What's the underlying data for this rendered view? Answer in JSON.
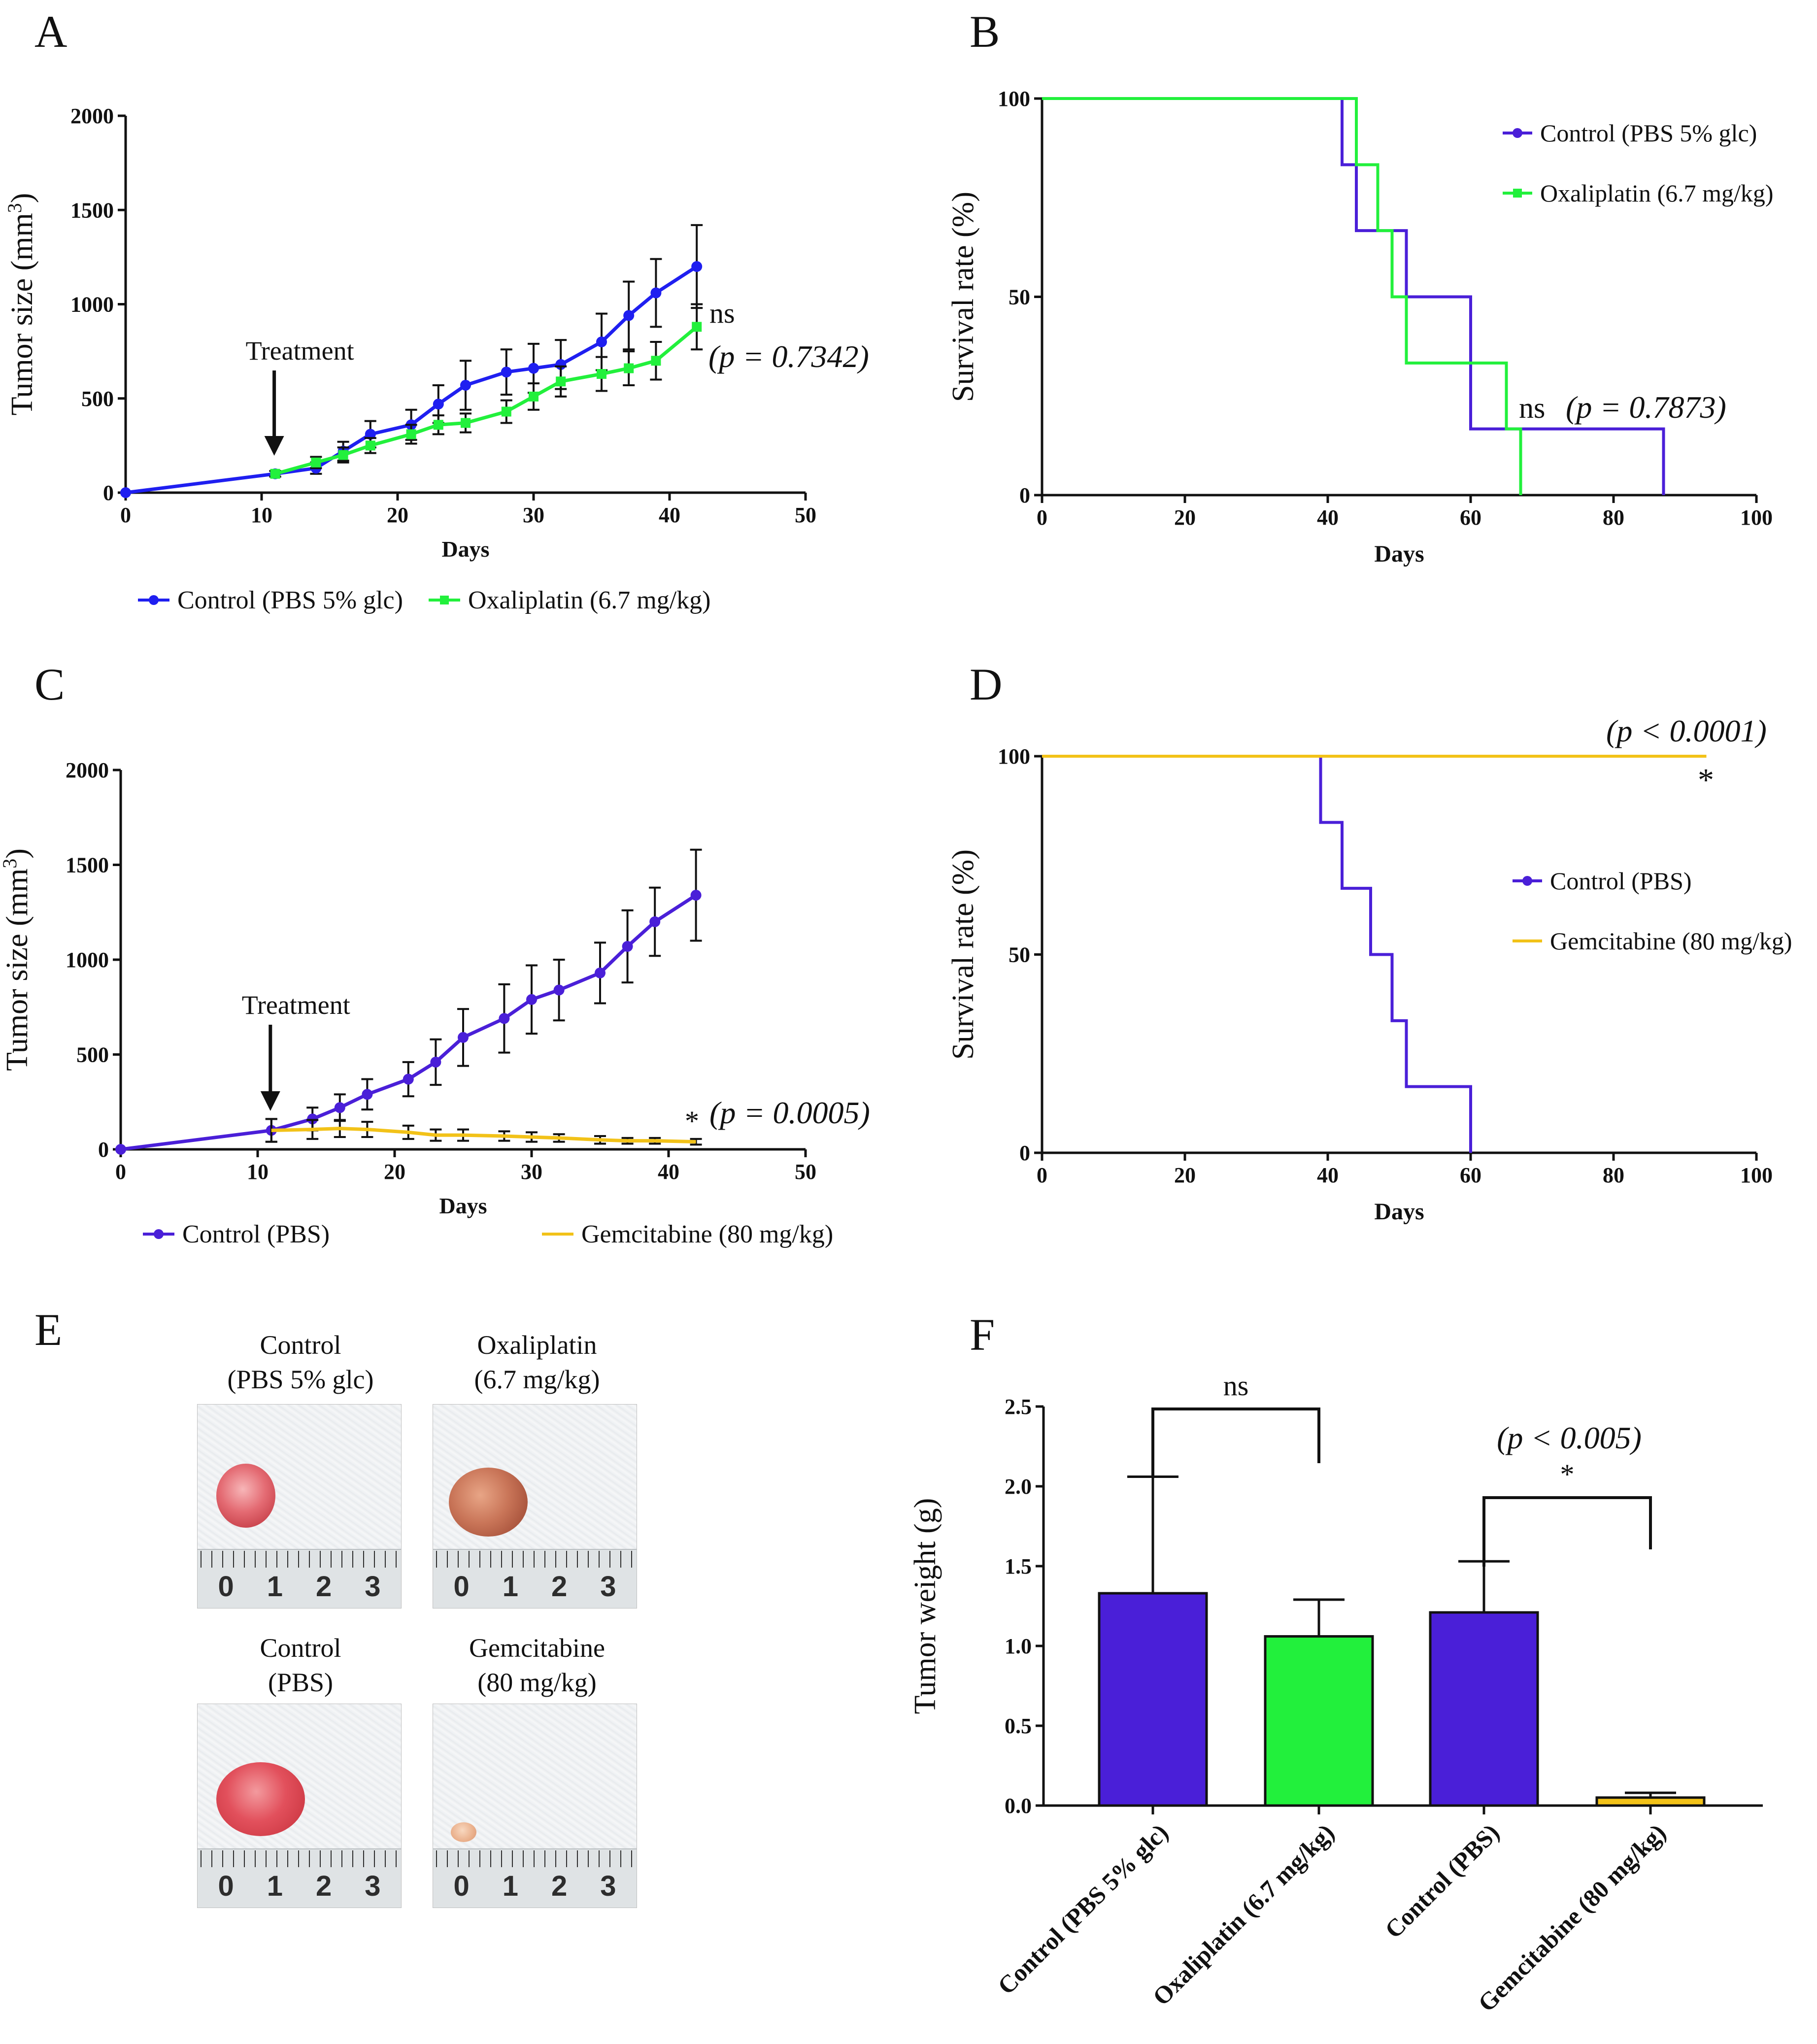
{
  "panel_letters": [
    "A",
    "B",
    "C",
    "D",
    "E",
    "F"
  ],
  "colors": {
    "control": "#1f1ff0",
    "control_b": "#4a1fd8",
    "oxaliplatin": "#22f03c",
    "gemcitabine": "#f2c218"
  },
  "chart_data": [
    {
      "panel": "A",
      "type": "line",
      "xlabel": "Days",
      "ylabel": "Tumor size (mm³)",
      "xlim": [
        0,
        50
      ],
      "ylim": [
        0,
        2000
      ],
      "xticks": [
        "0",
        "10",
        "20",
        "30",
        "40",
        "50"
      ],
      "yticks": [
        "0",
        "500",
        "1000",
        "1500",
        "2000"
      ],
      "annotation_arrow": "Treatment",
      "significance": "ns",
      "p_value": "(p = 0.7342)",
      "series": [
        {
          "name": "Control (PBS 5% glc)",
          "x": [
            0,
            11,
            14,
            16,
            18,
            21,
            23,
            25,
            28,
            30,
            32,
            35,
            37,
            39,
            42
          ],
          "y": [
            0,
            100,
            130,
            220,
            310,
            360,
            470,
            570,
            640,
            660,
            680,
            800,
            940,
            1060,
            1200
          ],
          "err": [
            0,
            15,
            30,
            50,
            70,
            80,
            100,
            130,
            120,
            130,
            130,
            150,
            180,
            180,
            220
          ]
        },
        {
          "name": "Oxaliplatin (6.7 mg/kg)",
          "x": [
            11,
            14,
            16,
            18,
            21,
            23,
            25,
            28,
            30,
            32,
            35,
            37,
            39,
            42
          ],
          "y": [
            100,
            160,
            200,
            250,
            310,
            360,
            370,
            430,
            510,
            590,
            630,
            660,
            700,
            880
          ],
          "err": [
            15,
            30,
            40,
            40,
            50,
            50,
            50,
            60,
            70,
            80,
            90,
            90,
            100,
            120
          ]
        }
      ]
    },
    {
      "panel": "B",
      "type": "line",
      "xlabel": "Days",
      "ylabel": "Survival rate (%)",
      "xlim": [
        0,
        100
      ],
      "ylim": [
        0,
        100
      ],
      "xticks": [
        "0",
        "20",
        "40",
        "60",
        "80",
        "100"
      ],
      "yticks": [
        "0",
        "50",
        "100"
      ],
      "significance": "ns",
      "p_value": "(p = 0.7873)",
      "series": [
        {
          "name": "Control (PBS 5% glc)",
          "steps": [
            [
              0,
              100
            ],
            [
              42,
              100
            ],
            [
              42,
              83.3
            ],
            [
              44,
              83.3
            ],
            [
              44,
              66.7
            ],
            [
              51,
              66.7
            ],
            [
              51,
              50
            ],
            [
              60,
              50
            ],
            [
              60,
              16.7
            ],
            [
              87,
              16.7
            ],
            [
              87,
              0
            ]
          ]
        },
        {
          "name": "Oxaliplatin (6.7 mg/kg)",
          "steps": [
            [
              0,
              100
            ],
            [
              44,
              100
            ],
            [
              44,
              83.3
            ],
            [
              47,
              83.3
            ],
            [
              47,
              66.7
            ],
            [
              49,
              66.7
            ],
            [
              49,
              50
            ],
            [
              51,
              50
            ],
            [
              51,
              33.3
            ],
            [
              65,
              33.3
            ],
            [
              65,
              16.7
            ],
            [
              67,
              16.7
            ],
            [
              67,
              0
            ]
          ]
        }
      ]
    },
    {
      "panel": "C",
      "type": "line",
      "xlabel": "Days",
      "ylabel": "Tumor size (mm³)",
      "xlim": [
        0,
        50
      ],
      "ylim": [
        0,
        2000
      ],
      "xticks": [
        "0",
        "10",
        "20",
        "30",
        "40",
        "50"
      ],
      "yticks": [
        "0",
        "500",
        "1000",
        "1500",
        "2000"
      ],
      "annotation_arrow": "Treatment",
      "significance": "*",
      "p_value": "(p = 0.0005)",
      "series": [
        {
          "name": "Control (PBS)",
          "x": [
            0,
            11,
            14,
            16,
            18,
            21,
            23,
            25,
            28,
            30,
            32,
            35,
            37,
            39,
            42
          ],
          "y": [
            0,
            100,
            160,
            220,
            290,
            370,
            460,
            590,
            690,
            790,
            840,
            930,
            1070,
            1200,
            1340
          ],
          "err": [
            0,
            60,
            60,
            70,
            80,
            90,
            120,
            150,
            180,
            180,
            160,
            160,
            190,
            180,
            240
          ]
        },
        {
          "name": "Gemcitabine (80 mg/kg)",
          "x": [
            11,
            14,
            16,
            18,
            21,
            23,
            25,
            28,
            30,
            32,
            35,
            37,
            39,
            42
          ],
          "y": [
            100,
            105,
            110,
            105,
            90,
            75,
            75,
            70,
            65,
            60,
            50,
            45,
            45,
            40
          ],
          "err": [
            60,
            50,
            45,
            40,
            35,
            30,
            30,
            25,
            25,
            20,
            20,
            15,
            15,
            15
          ]
        }
      ]
    },
    {
      "panel": "D",
      "type": "line",
      "xlabel": "Days",
      "ylabel": "Survival rate (%)",
      "xlim": [
        0,
        100
      ],
      "ylim": [
        0,
        100
      ],
      "xticks": [
        "0",
        "20",
        "40",
        "60",
        "80",
        "100"
      ],
      "yticks": [
        "0",
        "50",
        "100"
      ],
      "significance": "*",
      "p_value": "(p < 0.0001)",
      "series": [
        {
          "name": "Control (PBS)",
          "steps": [
            [
              0,
              100
            ],
            [
              39,
              100
            ],
            [
              39,
              83.3
            ],
            [
              42,
              83.3
            ],
            [
              42,
              66.7
            ],
            [
              46,
              66.7
            ],
            [
              46,
              50
            ],
            [
              49,
              50
            ],
            [
              49,
              33.3
            ],
            [
              51,
              33.3
            ],
            [
              51,
              16.7
            ],
            [
              60,
              16.7
            ],
            [
              60,
              0
            ]
          ]
        },
        {
          "name": "Gemcitabine (80 mg/kg)",
          "steps": [
            [
              0,
              100
            ],
            [
              93,
              100
            ]
          ]
        }
      ]
    },
    {
      "panel": "F",
      "type": "bar",
      "ylabel": "Tumor weight (g)",
      "ylim": [
        0,
        2.5
      ],
      "yticks": [
        "0.0",
        "0.5",
        "1.0",
        "1.5",
        "2.0",
        "2.5"
      ],
      "categories": [
        "Control (PBS 5% glc)",
        "Oxaliplatin (6.7 mg/kg)",
        "Control (PBS)",
        "Gemcitabine (80 mg/kg)"
      ],
      "values": [
        1.33,
        1.06,
        1.21,
        0.05
      ],
      "errors": [
        0.73,
        0.23,
        0.32,
        0.03
      ],
      "comparisons": [
        {
          "from": 0,
          "to": 1,
          "label": "ns",
          "p_value": ""
        },
        {
          "from": 2,
          "to": 3,
          "label": "*",
          "p_value": "(p < 0.005)"
        }
      ]
    }
  ],
  "photos": [
    {
      "label_line1": "Control",
      "label_line2": "(PBS 5% glc)",
      "ruler": [
        "0",
        "1",
        "2",
        "3"
      ]
    },
    {
      "label_line1": "Oxaliplatin",
      "label_line2": "(6.7 mg/kg)",
      "ruler": [
        "0",
        "1",
        "2",
        "3"
      ]
    },
    {
      "label_line1": "Control",
      "label_line2": "(PBS)",
      "ruler": [
        "0",
        "1",
        "2",
        "3"
      ]
    },
    {
      "label_line1": "Gemcitabine",
      "label_line2": "(80 mg/kg)",
      "ruler": [
        "0",
        "1",
        "2",
        "3"
      ]
    }
  ]
}
